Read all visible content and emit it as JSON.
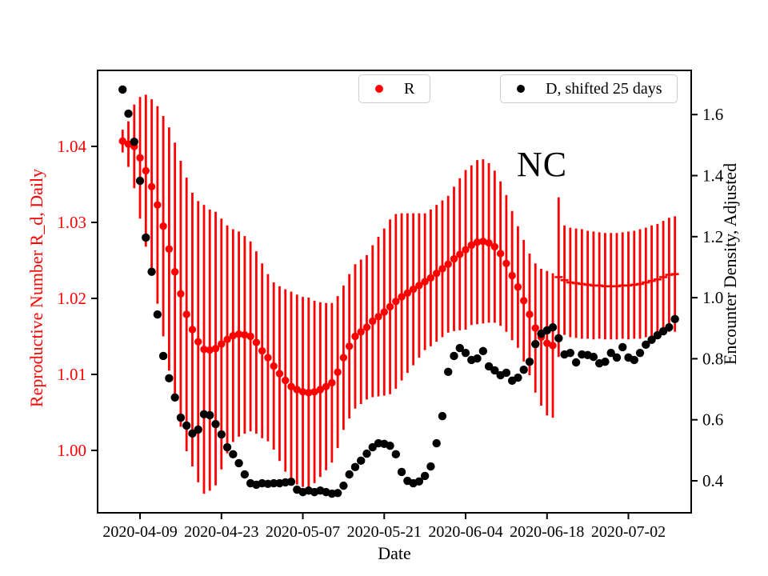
{
  "figure": {
    "background": "#ffffff"
  },
  "annotation": {
    "text": "NC"
  },
  "legend": {
    "items": [
      {
        "label": "R",
        "color": "#ff0000"
      },
      {
        "label": "D, shifted 25 days",
        "color": "#000000"
      }
    ]
  },
  "axes": {
    "xlabel": "Date",
    "ylabel_left": "Reproductive Number R_d, Daily",
    "ylabel_right": "Encounter Density, Adjusted",
    "left_label_color": "#ff0000",
    "right_label_color": "#000000"
  },
  "chart_data": {
    "type": "scatter",
    "title": "",
    "x_start_date": "2020-04-06",
    "x_tick_labels": [
      "2020-04-09",
      "2020-04-23",
      "2020-05-07",
      "2020-05-21",
      "2020-06-04",
      "2020-06-18",
      "2020-07-02"
    ],
    "x_tick_days": [
      3,
      17,
      31,
      45,
      59,
      73,
      87
    ],
    "xlim_days": [
      -4.3,
      97.8
    ],
    "ylim_left": [
      0.99179,
      1.05
    ],
    "ylim_right": [
      0.2952,
      1.7447
    ],
    "y_ticks_left_values": [
      1.0,
      1.01,
      1.02,
      1.03,
      1.04
    ],
    "y_ticks_left_labels": [
      "1.00",
      "1.01",
      "1.02",
      "1.03",
      "1.04"
    ],
    "y_ticks_right_values": [
      0.4,
      0.6,
      0.8,
      1.0,
      1.2,
      1.4,
      1.6
    ],
    "y_ticks_right_labels": [
      "0.4",
      "0.6",
      "0.8",
      "1.0",
      "1.2",
      "1.4",
      "1.6"
    ],
    "grid": false,
    "series": [
      {
        "name": "R",
        "axis": "left",
        "color": "#ff0000",
        "marker_switch_index": 75,
        "values": [
          1.0407,
          1.0403,
          1.04,
          1.0385,
          1.0368,
          1.0347,
          1.0323,
          1.0295,
          1.0265,
          1.0235,
          1.0206,
          1.0179,
          1.0159,
          1.0143,
          1.0133,
          1.0132,
          1.0134,
          1.014,
          1.0146,
          1.0151,
          1.0153,
          1.0152,
          1.015,
          1.0142,
          1.0131,
          1.0122,
          1.0111,
          1.0101,
          1.0092,
          1.0084,
          1.008,
          1.0077,
          1.0076,
          1.0077,
          1.008,
          1.0084,
          1.0089,
          1.0103,
          1.0122,
          1.0137,
          1.015,
          1.0156,
          1.0162,
          1.017,
          1.0176,
          1.0182,
          1.0189,
          1.0196,
          1.0202,
          1.0207,
          1.0212,
          1.0217,
          1.0222,
          1.0227,
          1.0233,
          1.0239,
          1.0245,
          1.0252,
          1.0258,
          1.0264,
          1.027,
          1.0274,
          1.0275,
          1.0273,
          1.0268,
          1.0259,
          1.0246,
          1.023,
          1.0215,
          1.0197,
          1.0179,
          1.0161,
          1.0149,
          1.0141,
          1.0138,
          1.0228,
          1.0224,
          1.0221,
          1.022,
          1.0219,
          1.0218,
          1.0217,
          1.0217,
          1.0216,
          1.0216,
          1.0216,
          1.0217,
          1.0217,
          1.0218,
          1.0219,
          1.0221,
          1.0223,
          1.0225,
          1.0228,
          1.0231,
          1.0232
        ],
        "errors": [
          0.0015,
          0.003,
          0.0055,
          0.008,
          0.01,
          0.0115,
          0.013,
          0.0145,
          0.016,
          0.017,
          0.0175,
          0.018,
          0.018,
          0.0185,
          0.019,
          0.0185,
          0.018,
          0.0165,
          0.015,
          0.014,
          0.0135,
          0.013,
          0.0125,
          0.012,
          0.0115,
          0.011,
          0.011,
          0.0115,
          0.012,
          0.0125,
          0.0125,
          0.0125,
          0.0125,
          0.012,
          0.0115,
          0.011,
          0.0105,
          0.01,
          0.0095,
          0.0095,
          0.0095,
          0.0095,
          0.0095,
          0.01,
          0.0105,
          0.011,
          0.0115,
          0.0115,
          0.011,
          0.0105,
          0.01,
          0.0095,
          0.009,
          0.009,
          0.009,
          0.009,
          0.009,
          0.0095,
          0.01,
          0.0105,
          0.0105,
          0.0108,
          0.0108,
          0.0105,
          0.01,
          0.0095,
          0.009,
          0.0085,
          0.008,
          0.008,
          0.008,
          0.0085,
          0.009,
          0.0095,
          0.0095,
          0.0105,
          0.0072,
          0.0072,
          0.0072,
          0.0072,
          0.0071,
          0.0071,
          0.007,
          0.007,
          0.007,
          0.007,
          0.007,
          0.0071,
          0.0071,
          0.0072,
          0.0072,
          0.0073,
          0.0073,
          0.0074,
          0.0075,
          0.0076
        ]
      },
      {
        "name": "D, shifted 25 days",
        "axis": "right",
        "color": "#000000",
        "values": [
          1.682,
          1.603,
          1.511,
          1.383,
          1.197,
          1.085,
          0.945,
          0.809,
          0.736,
          0.673,
          0.607,
          0.581,
          0.555,
          0.568,
          0.618,
          0.615,
          0.586,
          0.552,
          0.51,
          0.487,
          0.458,
          0.421,
          0.392,
          0.387,
          0.392,
          0.39,
          0.392,
          0.392,
          0.395,
          0.397,
          0.371,
          0.363,
          0.368,
          0.363,
          0.368,
          0.363,
          0.358,
          0.36,
          0.384,
          0.421,
          0.445,
          0.466,
          0.489,
          0.51,
          0.523,
          0.521,
          0.515,
          0.487,
          0.429,
          0.4,
          0.392,
          0.398,
          0.416,
          0.447,
          0.523,
          0.612,
          0.757,
          0.809,
          0.835,
          0.819,
          0.796,
          0.801,
          0.825,
          0.775,
          0.762,
          0.746,
          0.754,
          0.728,
          0.738,
          0.764,
          0.79,
          0.848,
          0.882,
          0.893,
          0.903,
          0.867,
          0.814,
          0.819,
          0.788,
          0.814,
          0.812,
          0.806,
          0.785,
          0.79,
          0.819,
          0.804,
          0.838,
          0.804,
          0.796,
          0.819,
          0.846,
          0.862,
          0.877,
          0.89,
          0.903,
          0.93
        ]
      }
    ]
  }
}
